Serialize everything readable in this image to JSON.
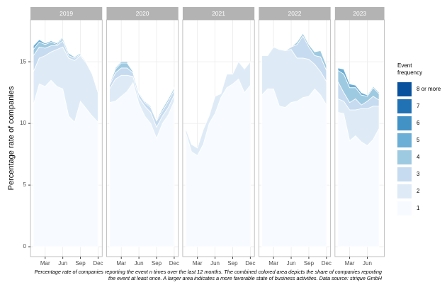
{
  "chart_data": {
    "type": "stacked-area",
    "ylabel": "Percentage rate of companies",
    "legend_title": "Event frequency",
    "caption": "Percentage rate of companies reporting the event n times over the last 12 months. The combined colored area depicts the share of companies reporting the event at least once. A larger area indicates a more favorable state of business activities. Data source: strique GmbH",
    "ylim": [
      -0.8,
      18.4
    ],
    "yticks": [
      0,
      5,
      10,
      15
    ],
    "grid": true,
    "series": [
      {
        "name": "1",
        "color": "#f7fbff"
      },
      {
        "name": "2",
        "color": "#deebf7"
      },
      {
        "name": "3",
        "color": "#c6dbef"
      },
      {
        "name": "4",
        "color": "#9ecae1"
      },
      {
        "name": "5",
        "color": "#6baed6"
      },
      {
        "name": "6",
        "color": "#4292c6"
      },
      {
        "name": "7",
        "color": "#2171b5"
      },
      {
        "name": "8 or more",
        "color": "#08519c"
      }
    ],
    "panels": [
      {
        "title": "2019",
        "xlim": [
          0.5,
          12.7
        ],
        "x": [
          1,
          2,
          3,
          4,
          5,
          6,
          7,
          8,
          9,
          10,
          11,
          12
        ],
        "xticks": [
          {
            "value": 3,
            "label": "Mar"
          },
          {
            "value": 6,
            "label": "Jun"
          },
          {
            "value": 9,
            "label": "Sep"
          },
          {
            "value": 12,
            "label": "Dec"
          }
        ],
        "series": [
          {
            "values": [
              11.5,
              13.2,
              13,
              13.5,
              13,
              12.8,
              10.6,
              10.1,
              11.8,
              11.2,
              10.6,
              10.1
            ]
          },
          {
            "values": [
              2.7,
              2.1,
              2.5,
              2.3,
              3.0,
              3.4,
              4.7,
              5.0,
              3.7,
              3.7,
              3.4,
              2.4
            ]
          },
          {
            "values": [
              1.3,
              0.9,
              0.6,
              0.5,
              0.3,
              0.5,
              0.2,
              0.2,
              0.1,
              0.1,
              0,
              0
            ]
          },
          {
            "values": [
              0.5,
              0.4,
              0.3,
              0.3,
              0.1,
              0.2,
              0.2,
              0.1,
              0.1,
              0,
              0,
              0
            ]
          },
          {
            "values": [
              0.3,
              0.2,
              0.1,
              0.1,
              0.1,
              0.1,
              0,
              0,
              0,
              0,
              0,
              0
            ]
          }
        ]
      },
      {
        "title": "2020",
        "xlim": [
          0.5,
          12.7
        ],
        "x": [
          1,
          2,
          3,
          4,
          5,
          6,
          7,
          8,
          9,
          10,
          11,
          12
        ],
        "xticks": [
          {
            "value": 3,
            "label": "Mar"
          },
          {
            "value": 6,
            "label": "Jun"
          },
          {
            "value": 9,
            "label": "Sep"
          },
          {
            "value": 12,
            "label": "Dec"
          }
        ],
        "series": [
          {
            "values": [
              11.7,
              11.8,
              12.2,
              12.6,
              13.3,
              11.6,
              10.6,
              10,
              8.8,
              10,
              10.7,
              11.8
            ]
          },
          {
            "values": [
              1.1,
              1.8,
              1.7,
              1.3,
              0.5,
              0.5,
              0.8,
              0.9,
              0.9,
              0.6,
              0.6,
              0.5
            ]
          },
          {
            "values": [
              0.3,
              0.5,
              0.6,
              0.6,
              0.3,
              0.3,
              0.3,
              0.4,
              0.5,
              0.4,
              0.5,
              0.4
            ]
          },
          {
            "values": [
              0.1,
              0.3,
              0.4,
              0.4,
              0.1,
              0.1,
              0.1,
              0.1,
              0.1,
              0.2,
              0.2,
              0.2
            ]
          },
          {
            "values": [
              0,
              0.1,
              0.1,
              0.1,
              0,
              0,
              0,
              0,
              0,
              0,
              0,
              0
            ]
          }
        ]
      },
      {
        "title": "2021",
        "xlim": [
          0.5,
          12.7
        ],
        "x": [
          1,
          2,
          3,
          4,
          5,
          6,
          7,
          8,
          9,
          10,
          11,
          12
        ],
        "xticks": [
          {
            "value": 3,
            "label": "Mar"
          },
          {
            "value": 6,
            "label": "Jun"
          },
          {
            "value": 9,
            "label": "Sep"
          },
          {
            "value": 12,
            "label": "Dec"
          }
        ],
        "series": [
          {
            "values": [
              9.3,
              7.7,
              7.4,
              8.3,
              10,
              10.8,
              12.1,
              12.9,
              13.2,
              13.6,
              12.5,
              13.1
            ]
          },
          {
            "values": [
              0.3,
              0.6,
              0.6,
              1.2,
              0.6,
              1.4,
              0.3,
              1.1,
              0.8,
              1.4,
              1.9,
              1.9
            ]
          }
        ]
      },
      {
        "title": "2022",
        "xlim": [
          0.5,
          12.7
        ],
        "x": [
          1,
          2,
          3,
          4,
          5,
          6,
          7,
          8,
          9,
          10,
          11,
          12
        ],
        "xticks": [
          {
            "value": 3,
            "label": "Mar"
          },
          {
            "value": 6,
            "label": "Jun"
          },
          {
            "value": 9,
            "label": "Sep"
          },
          {
            "value": 12,
            "label": "Dec"
          }
        ],
        "series": [
          {
            "values": [
              12.3,
              12.8,
              12.8,
              11.4,
              11.3,
              11.7,
              11.8,
              12.1,
              12.2,
              12.8,
              12.3,
              11.5
            ]
          },
          {
            "values": [
              3.2,
              2.7,
              3.4,
              4.6,
              4.6,
              4.3,
              3.5,
              3.2,
              3.0,
              2.0,
              1.9,
              1.9
            ]
          },
          {
            "values": [
              0,
              0,
              0,
              0,
              0,
              0.2,
              1.1,
              1.8,
              1.0,
              0.7,
              1.2,
              0.9
            ]
          },
          {
            "values": [
              0,
              0,
              0,
              0,
              0,
              0,
              0.2,
              0.2,
              0.2,
              0.3,
              0.5,
              0.4
            ]
          }
        ]
      },
      {
        "title": "2023",
        "xlim": [
          0.5,
          8.9
        ],
        "x": [
          1,
          2,
          3,
          4,
          5,
          6,
          7,
          8
        ],
        "xticks": [
          {
            "value": 3,
            "label": "Mar"
          },
          {
            "value": 6,
            "label": "Jun"
          }
        ],
        "series": [
          {
            "values": [
              10.9,
              10.8,
              8.6,
              9,
              8.5,
              8.2,
              8.7,
              9.6
            ]
          },
          {
            "values": [
              1.1,
              1.0,
              2.5,
              2.1,
              2.7,
              3.0,
              2.7,
              1.8
            ]
          },
          {
            "values": [
              1.4,
              0.7,
              0.6,
              0.9,
              0.3,
              0.6,
              0.8,
              0.5
            ]
          },
          {
            "values": [
              0.9,
              1.5,
              1.2,
              0.9,
              0.8,
              0.4,
              0.7,
              0.5
            ]
          },
          {
            "values": [
              0.2,
              0.4,
              0.3,
              0.2,
              0.2,
              0.1,
              0.1,
              0.1
            ]
          }
        ]
      }
    ]
  }
}
